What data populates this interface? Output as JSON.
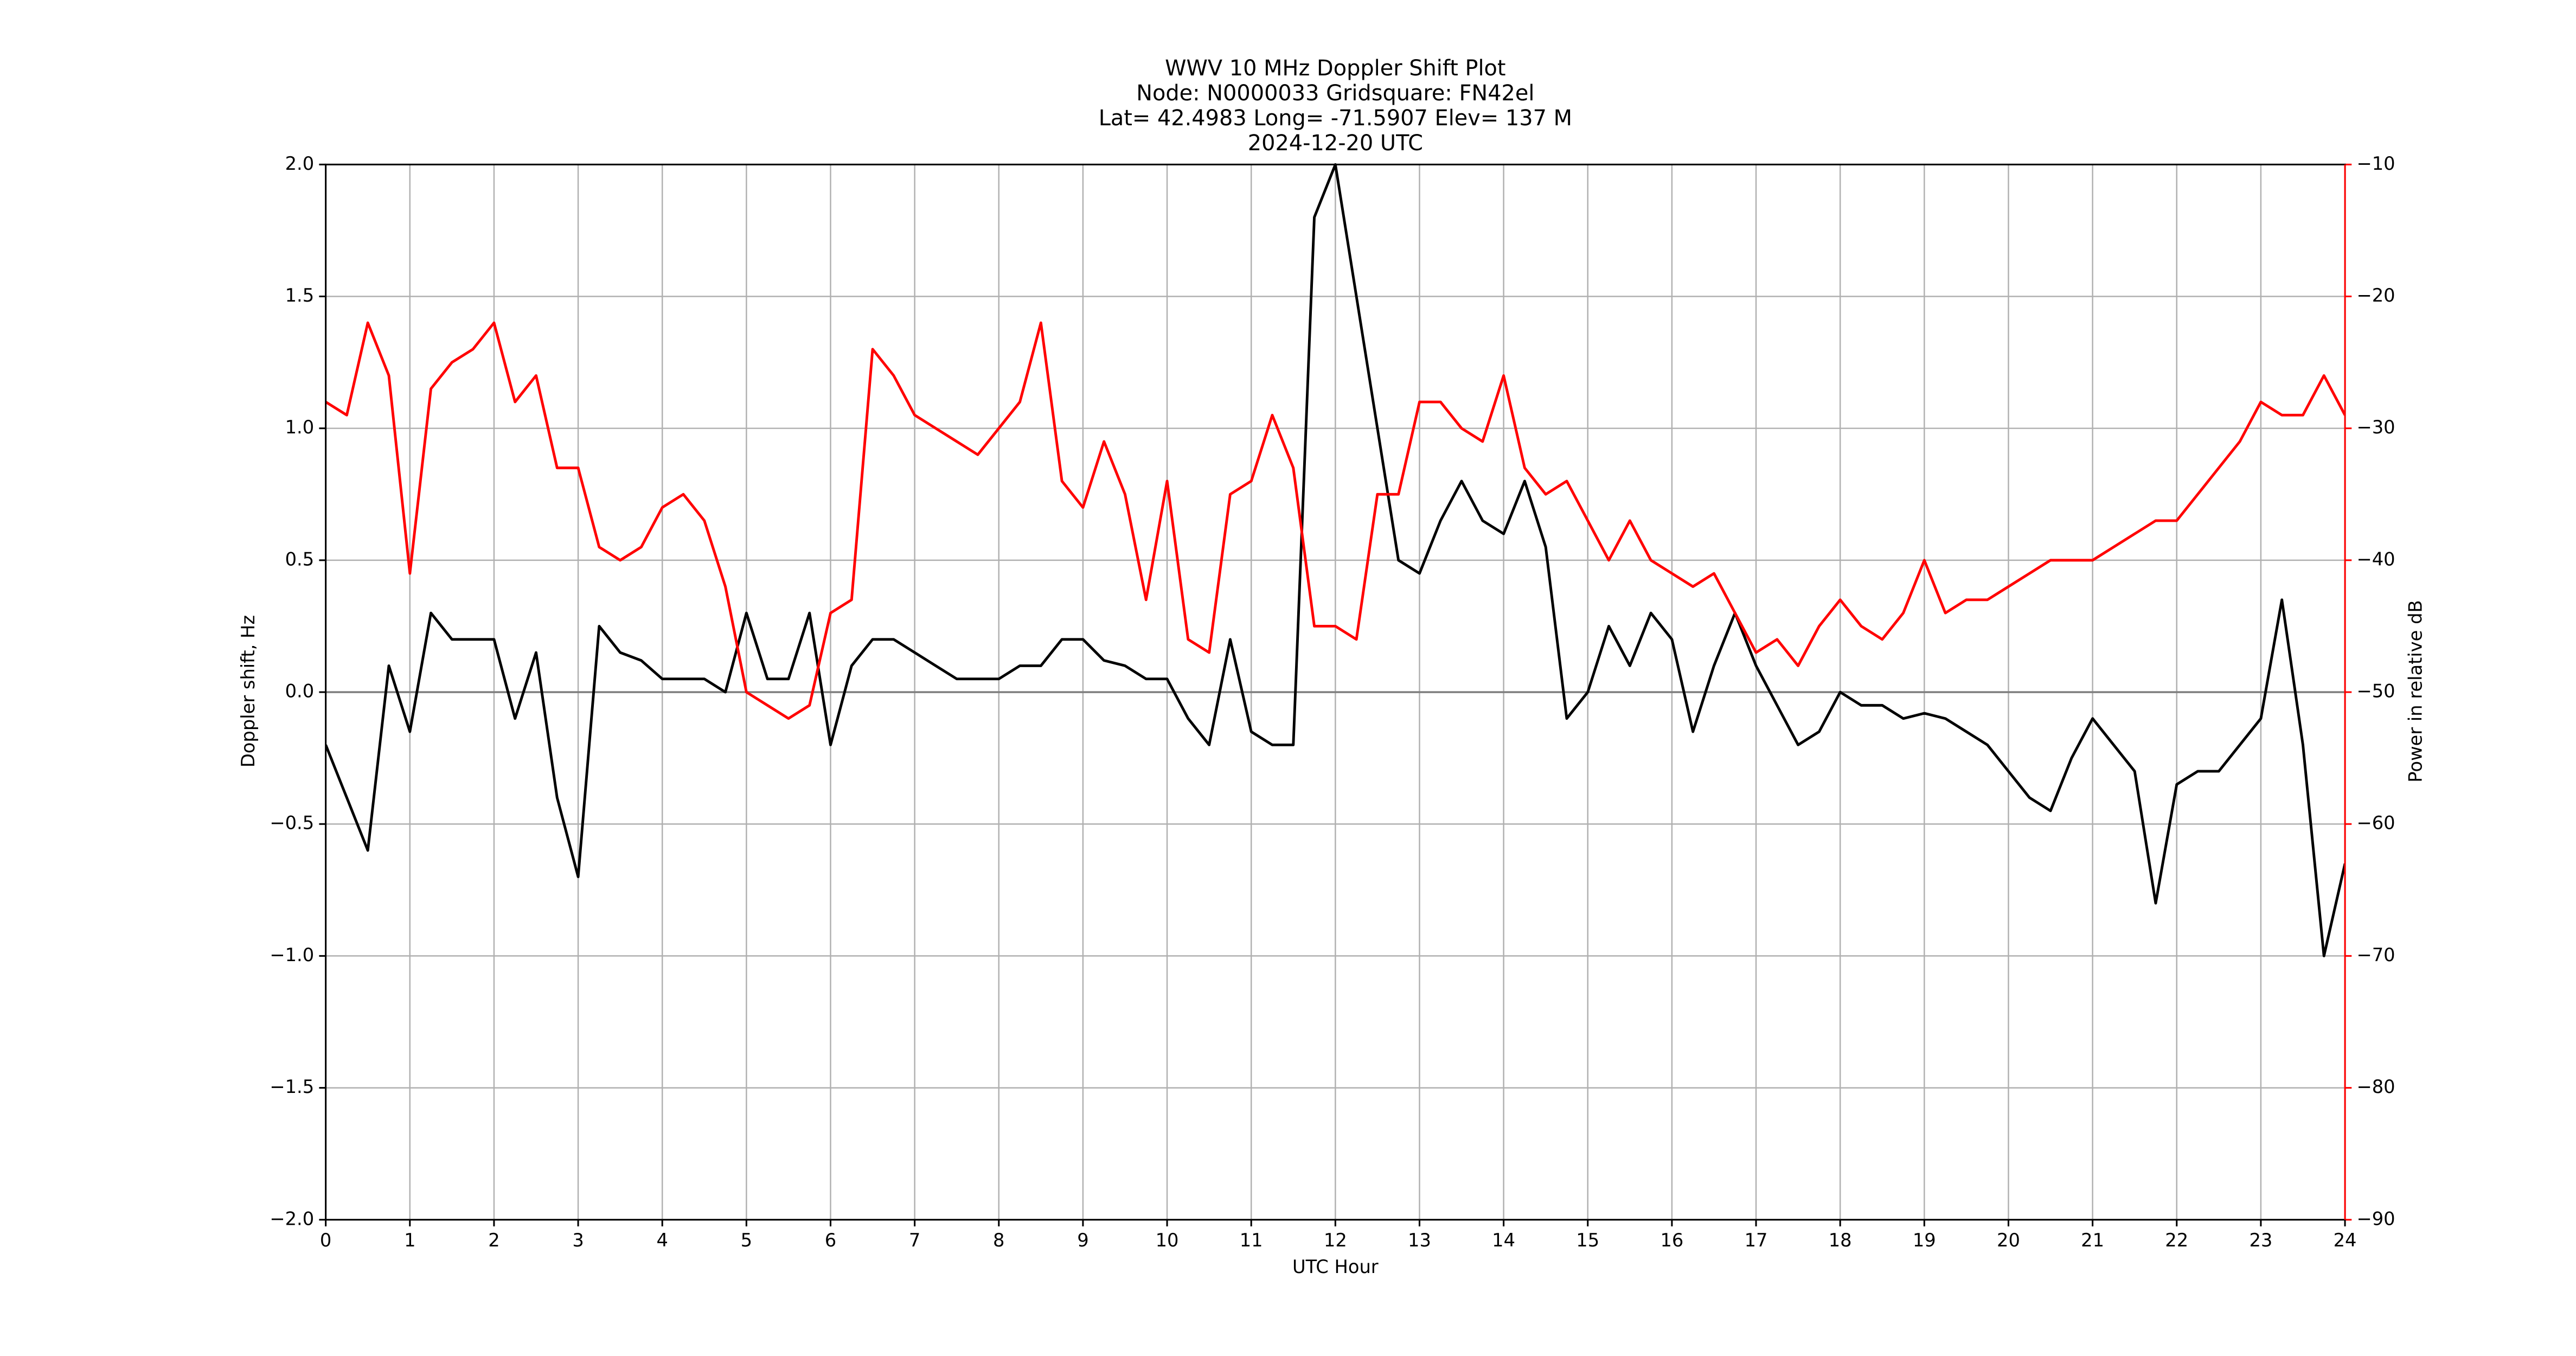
{
  "chart_data": {
    "type": "line",
    "title_lines": [
      "WWV 10 MHz Doppler Shift Plot",
      "Node:  N0000033     Gridsquare:  FN42el",
      "Lat= 42.4983    Long= -71.5907    Elev= 137 M",
      "2024-12-20  UTC"
    ],
    "xlabel": "UTC Hour",
    "ylabel": "Doppler shift, Hz",
    "y2label": "Power in relative dB",
    "xlim": [
      0,
      24
    ],
    "xticks": [
      0,
      1,
      2,
      3,
      4,
      5,
      6,
      7,
      8,
      9,
      10,
      11,
      12,
      13,
      14,
      15,
      16,
      17,
      18,
      19,
      20,
      21,
      22,
      23,
      24
    ],
    "ylim": [
      -2,
      2
    ],
    "yticks": [
      {
        "value": -2,
        "label": "−2.0"
      },
      {
        "value": -1.5,
        "label": "−1.5"
      },
      {
        "value": -1,
        "label": "−1.0"
      },
      {
        "value": -0.5,
        "label": "−0.5"
      },
      {
        "value": 0,
        "label": "0.0"
      },
      {
        "value": 0.5,
        "label": "0.5"
      },
      {
        "value": 1,
        "label": "1.0"
      },
      {
        "value": 1.5,
        "label": "1.5"
      },
      {
        "value": 2,
        "label": "2.0"
      }
    ],
    "y2lim": [
      -90,
      -10
    ],
    "y2ticks": [
      {
        "value": -90,
        "label": "−90"
      },
      {
        "value": -80,
        "label": "−80"
      },
      {
        "value": -70,
        "label": "−70"
      },
      {
        "value": -60,
        "label": "−60"
      },
      {
        "value": -50,
        "label": "−50"
      },
      {
        "value": -40,
        "label": "−40"
      },
      {
        "value": -30,
        "label": "−30"
      },
      {
        "value": -20,
        "label": "−20"
      },
      {
        "value": -10,
        "label": "−10"
      }
    ],
    "y2color": "#ff0000",
    "grid": true,
    "hlines": [
      0
    ],
    "x": [
      0,
      0.25,
      0.5,
      0.75,
      1,
      1.25,
      1.5,
      1.75,
      2,
      2.25,
      2.5,
      2.75,
      3,
      3.25,
      3.5,
      3.75,
      4,
      4.25,
      4.5,
      4.75,
      5,
      5.25,
      5.5,
      5.75,
      6,
      6.25,
      6.5,
      6.75,
      7,
      7.25,
      7.5,
      7.75,
      8,
      8.25,
      8.5,
      8.75,
      9,
      9.25,
      9.5,
      9.75,
      10,
      10.25,
      10.5,
      10.75,
      11,
      11.25,
      11.5,
      11.75,
      12,
      12.25,
      12.5,
      12.75,
      13,
      13.25,
      13.5,
      13.75,
      14,
      14.25,
      14.5,
      14.75,
      15,
      15.25,
      15.5,
      15.75,
      16,
      16.25,
      16.5,
      16.75,
      17,
      17.25,
      17.5,
      17.75,
      18,
      18.25,
      18.5,
      18.75,
      19,
      19.25,
      19.5,
      19.75,
      20,
      20.25,
      20.5,
      20.75,
      21,
      21.25,
      21.5,
      21.75,
      22,
      22.25,
      22.5,
      22.75,
      23,
      23.25,
      23.5,
      23.75,
      24
    ],
    "series": [
      {
        "color": "#000000",
        "axis": "y",
        "values": [
          -0.2,
          -0.4,
          -0.6,
          0.1,
          -0.15,
          0.3,
          0.2,
          0.2,
          0.2,
          -0.1,
          0.15,
          -0.4,
          -0.7,
          0.25,
          0.15,
          0.12,
          0.05,
          0.05,
          0.05,
          0.0,
          0.3,
          0.05,
          0.05,
          0.3,
          -0.2,
          0.1,
          0.2,
          0.2,
          0.15,
          0.1,
          0.05,
          0.05,
          0.05,
          0.1,
          0.1,
          0.2,
          0.2,
          0.12,
          0.1,
          0.05,
          0.05,
          -0.1,
          -0.2,
          0.2,
          -0.15,
          -0.2,
          -0.2,
          1.8,
          2.0,
          1.5,
          1.0,
          0.5,
          0.45,
          0.65,
          0.8,
          0.65,
          0.6,
          0.8,
          0.55,
          -0.1,
          0.0,
          0.25,
          0.1,
          0.3,
          0.2,
          -0.15,
          0.1,
          0.3,
          0.1,
          -0.05,
          -0.2,
          -0.15,
          0.0,
          -0.05,
          -0.05,
          -0.1,
          -0.08,
          -0.1,
          -0.15,
          -0.2,
          -0.3,
          -0.4,
          -0.45,
          -0.25,
          -0.1,
          -0.2,
          -0.3,
          -0.8,
          -0.35,
          -0.3,
          -0.3,
          -0.2,
          -0.1,
          0.35,
          -0.2,
          -1.0,
          -0.65
        ]
      },
      {
        "color": "#ff0000",
        "axis": "y2",
        "values": [
          -28,
          -29,
          -22,
          -26,
          -41,
          -27,
          -25,
          -24,
          -22,
          -28,
          -26,
          -33,
          -33,
          -39,
          -40,
          -39,
          -36,
          -35,
          -37,
          -42,
          -50,
          -51,
          -52,
          -51,
          -44,
          -43,
          -24,
          -26,
          -29,
          -30,
          -31,
          -32,
          -30,
          -28,
          -22,
          -34,
          -36,
          -31,
          -35,
          -43,
          -34,
          -46,
          -47,
          -35,
          -34,
          -29,
          -33,
          -45,
          -45,
          -46,
          -35,
          -35,
          -28,
          -28,
          -30,
          -31,
          -26,
          -33,
          -35,
          -34,
          -37,
          -40,
          -37,
          -40,
          -41,
          -42,
          -41,
          -44,
          -47,
          -46,
          -48,
          -45,
          -43,
          -45,
          -46,
          -44,
          -40,
          -44,
          -43,
          -43,
          -42,
          -41,
          -40,
          -40,
          -40,
          -39,
          -38,
          -37,
          -37,
          -35,
          -33,
          -31,
          -28,
          -29,
          -29,
          -26,
          -29
        ]
      }
    ]
  }
}
